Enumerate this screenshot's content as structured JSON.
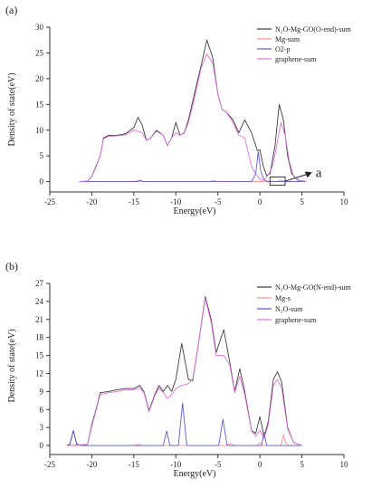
{
  "chart_data": [
    {
      "type": "line",
      "panel_label": "(a)",
      "xlabel": "Energy(eV)",
      "ylabel": "Density of state(eV)",
      "xlim": [
        -25,
        10
      ],
      "ylim": [
        -2,
        30
      ],
      "xticks": [
        -25,
        -20,
        -15,
        -10,
        -5,
        0,
        5,
        10
      ],
      "yticks": [
        0,
        5,
        10,
        15,
        20,
        25,
        30
      ],
      "legend_position": "top-right",
      "annotation": {
        "text": "a",
        "box_x": [
          1.2,
          3.0
        ],
        "box_y": [
          -0.7,
          0.9
        ],
        "arrow_to_x": 6.2,
        "arrow_to_y": 1.8
      },
      "series": [
        {
          "name": "N₂O-Mg-GO(O-end)-sum",
          "color": "#3a3a3a",
          "points": [
            [
              -21.5,
              0
            ],
            [
              -20.5,
              0.1
            ],
            [
              -20,
              1
            ],
            [
              -19.5,
              3
            ],
            [
              -19,
              5
            ],
            [
              -18.6,
              8.5
            ],
            [
              -18,
              9
            ],
            [
              -17,
              9
            ],
            [
              -16,
              9.3
            ],
            [
              -15,
              10.5
            ],
            [
              -14.5,
              12.5
            ],
            [
              -14,
              11
            ],
            [
              -13.5,
              8
            ],
            [
              -13,
              8.5
            ],
            [
              -12.3,
              10
            ],
            [
              -11.5,
              9
            ],
            [
              -11,
              7
            ],
            [
              -10.5,
              8.5
            ],
            [
              -10,
              11.5
            ],
            [
              -9.5,
              9
            ],
            [
              -9,
              9.5
            ],
            [
              -8.5,
              12
            ],
            [
              -7.8,
              17
            ],
            [
              -7,
              22.5
            ],
            [
              -6.3,
              27.5
            ],
            [
              -5.6,
              24
            ],
            [
              -5,
              17
            ],
            [
              -4.5,
              14
            ],
            [
              -4,
              13.5
            ],
            [
              -3.2,
              12
            ],
            [
              -2.5,
              9.5
            ],
            [
              -1.8,
              12
            ],
            [
              -1,
              9.5
            ],
            [
              -0.3,
              6
            ],
            [
              0,
              6.2
            ],
            [
              0.4,
              3
            ],
            [
              0.8,
              1.2
            ],
            [
              1.2,
              1.5
            ],
            [
              1.8,
              7
            ],
            [
              2.3,
              15
            ],
            [
              2.8,
              12
            ],
            [
              3.3,
              5
            ],
            [
              3.8,
              1.5
            ],
            [
              4.5,
              0.3
            ],
            [
              5.5,
              0
            ]
          ]
        },
        {
          "name": "Mg-sum",
          "color": "#ff8c8c",
          "points": [
            [
              -21.5,
              0
            ],
            [
              -15,
              0
            ],
            [
              -14.5,
              0.2
            ],
            [
              -14,
              0
            ],
            [
              -6,
              0
            ],
            [
              -5.5,
              0.2
            ],
            [
              -5,
              0
            ],
            [
              2,
              0
            ],
            [
              2.5,
              0.3
            ],
            [
              3,
              0
            ],
            [
              5.5,
              0
            ]
          ]
        },
        {
          "name": "O2-p",
          "color": "#5b5bd6",
          "points": [
            [
              -21.5,
              0
            ],
            [
              -14.5,
              0
            ],
            [
              -14.2,
              0.3
            ],
            [
              -13.9,
              0
            ],
            [
              -1,
              0
            ],
            [
              -0.5,
              1.5
            ],
            [
              -0.2,
              5.8
            ],
            [
              0.1,
              2
            ],
            [
              0.5,
              0.3
            ],
            [
              1,
              0
            ],
            [
              5.5,
              0
            ]
          ]
        },
        {
          "name": "graphene-sum",
          "color": "#e06ee0",
          "points": [
            [
              -21.5,
              0
            ],
            [
              -20.5,
              0.1
            ],
            [
              -20,
              1
            ],
            [
              -19.5,
              2.8
            ],
            [
              -19,
              5
            ],
            [
              -18.6,
              8.3
            ],
            [
              -18,
              8.8
            ],
            [
              -17,
              8.9
            ],
            [
              -16,
              9.1
            ],
            [
              -15,
              10
            ],
            [
              -14.5,
              9.8
            ],
            [
              -14,
              9.5
            ],
            [
              -13.5,
              8
            ],
            [
              -13,
              8.5
            ],
            [
              -12.3,
              9.8
            ],
            [
              -11.5,
              9
            ],
            [
              -11,
              7
            ],
            [
              -10.5,
              8.5
            ],
            [
              -10,
              9.5
            ],
            [
              -9.5,
              9
            ],
            [
              -9,
              9.4
            ],
            [
              -8.5,
              11.5
            ],
            [
              -7.8,
              16
            ],
            [
              -7,
              22
            ],
            [
              -6.3,
              24.8
            ],
            [
              -5.6,
              23
            ],
            [
              -5,
              17
            ],
            [
              -4.5,
              14
            ],
            [
              -4,
              13.5
            ],
            [
              -3.2,
              11.5
            ],
            [
              -2.5,
              9
            ],
            [
              -1.8,
              8.5
            ],
            [
              -1,
              3
            ],
            [
              -0.5,
              1.5
            ],
            [
              0,
              0.5
            ],
            [
              0.5,
              0.3
            ],
            [
              1,
              1.3
            ],
            [
              1.5,
              3
            ],
            [
              2,
              7
            ],
            [
              2.5,
              11.5
            ],
            [
              3,
              9
            ],
            [
              3.5,
              4
            ],
            [
              4,
              1
            ],
            [
              4.7,
              0.2
            ],
            [
              5.5,
              0
            ]
          ]
        }
      ]
    },
    {
      "type": "line",
      "panel_label": "(b)",
      "xlabel": "Energy(eV)",
      "ylabel": "Density of state(eV)",
      "xlim": [
        -25,
        10
      ],
      "ylim": [
        -1.5,
        27
      ],
      "xticks": [
        -25,
        -20,
        -15,
        -10,
        -5,
        0,
        5,
        10
      ],
      "yticks": [
        0,
        3,
        6,
        9,
        12,
        15,
        18,
        21,
        24,
        27
      ],
      "legend_position": "top-right",
      "series": [
        {
          "name": "N₂O-Mg-GO(N-end)-sum",
          "color": "#3a3a3a",
          "points": [
            [
              -23,
              0
            ],
            [
              -22.6,
              0.2
            ],
            [
              -22.2,
              2.5
            ],
            [
              -21.8,
              0.2
            ],
            [
              -21.3,
              0
            ],
            [
              -20.5,
              0.2
            ],
            [
              -20,
              3.5
            ],
            [
              -19.5,
              6
            ],
            [
              -19,
              8.8
            ],
            [
              -18,
              9
            ],
            [
              -17,
              9.3
            ],
            [
              -16,
              9.5
            ],
            [
              -15,
              9.5
            ],
            [
              -14.3,
              10
            ],
            [
              -13.8,
              9
            ],
            [
              -13.2,
              5.8
            ],
            [
              -12.5,
              8.5
            ],
            [
              -12,
              10
            ],
            [
              -11.5,
              9
            ],
            [
              -11,
              10
            ],
            [
              -10.5,
              9
            ],
            [
              -10,
              11
            ],
            [
              -9.3,
              17
            ],
            [
              -8.5,
              11
            ],
            [
              -8,
              10.8
            ],
            [
              -7.2,
              18
            ],
            [
              -6.5,
              24.8
            ],
            [
              -5.8,
              21
            ],
            [
              -5.2,
              15.5
            ],
            [
              -4.3,
              19.3
            ],
            [
              -3.6,
              14
            ],
            [
              -3,
              9
            ],
            [
              -2.4,
              12.8
            ],
            [
              -1.8,
              9
            ],
            [
              -1,
              2.5
            ],
            [
              -0.5,
              2
            ],
            [
              0,
              4.8
            ],
            [
              0.5,
              1.5
            ],
            [
              1,
              4
            ],
            [
              1.6,
              11
            ],
            [
              2.1,
              12.3
            ],
            [
              2.6,
              10.5
            ],
            [
              3.3,
              3
            ],
            [
              4,
              0.5
            ],
            [
              5,
              0
            ]
          ]
        },
        {
          "name": "Mg-s",
          "color": "#ff8c8c",
          "points": [
            [
              -23,
              0
            ],
            [
              -15,
              0
            ],
            [
              -14.5,
              0.2
            ],
            [
              -14,
              0
            ],
            [
              -4,
              0
            ],
            [
              -3.5,
              0.3
            ],
            [
              -3,
              0
            ],
            [
              -0.3,
              0
            ],
            [
              0,
              0.5
            ],
            [
              0.3,
              0
            ],
            [
              2.5,
              0
            ],
            [
              2.8,
              1.8
            ],
            [
              3.1,
              0.3
            ],
            [
              3.5,
              0
            ],
            [
              5,
              0
            ]
          ]
        },
        {
          "name": "N₂O-sum",
          "color": "#5b5bd6",
          "points": [
            [
              -23,
              0
            ],
            [
              -22.6,
              0.3
            ],
            [
              -22.2,
              2.5
            ],
            [
              -21.8,
              0.3
            ],
            [
              -21.3,
              0
            ],
            [
              -11.5,
              0
            ],
            [
              -11.1,
              2.4
            ],
            [
              -10.7,
              0
            ],
            [
              -9.7,
              0
            ],
            [
              -9.2,
              7.1
            ],
            [
              -8.7,
              0
            ],
            [
              -4.9,
              0
            ],
            [
              -4.4,
              4.4
            ],
            [
              -3.9,
              0
            ],
            [
              0.2,
              0
            ],
            [
              0.5,
              2.2
            ],
            [
              0.8,
              0
            ],
            [
              5,
              0
            ]
          ]
        },
        {
          "name": "graphene-sum",
          "color": "#e06ee0",
          "points": [
            [
              -23,
              0
            ],
            [
              -20.5,
              0.2
            ],
            [
              -20,
              3.2
            ],
            [
              -19.5,
              5.8
            ],
            [
              -19,
              8.5
            ],
            [
              -18,
              8.8
            ],
            [
              -17,
              9
            ],
            [
              -16,
              9.3
            ],
            [
              -15,
              9.3
            ],
            [
              -14.3,
              9.6
            ],
            [
              -13.8,
              8.8
            ],
            [
              -13.2,
              5.6
            ],
            [
              -12.5,
              8.3
            ],
            [
              -12,
              9.6
            ],
            [
              -11.5,
              8.8
            ],
            [
              -11,
              7.8
            ],
            [
              -10.5,
              8.5
            ],
            [
              -10,
              9.5
            ],
            [
              -9.3,
              10
            ],
            [
              -8.5,
              10.3
            ],
            [
              -8,
              11
            ],
            [
              -7.2,
              18
            ],
            [
              -6.5,
              24.5
            ],
            [
              -5.8,
              20.5
            ],
            [
              -5.2,
              15
            ],
            [
              -4.3,
              15
            ],
            [
              -3.6,
              13.5
            ],
            [
              -3,
              8.8
            ],
            [
              -2.4,
              11.5
            ],
            [
              -1.8,
              8.5
            ],
            [
              -1,
              2.4
            ],
            [
              -0.5,
              1.5
            ],
            [
              0,
              2.5
            ],
            [
              0.5,
              1.2
            ],
            [
              1,
              3.5
            ],
            [
              1.6,
              10
            ],
            [
              2.1,
              11
            ],
            [
              2.6,
              9.5
            ],
            [
              3.3,
              2.8
            ],
            [
              4,
              0.5
            ],
            [
              5,
              0
            ]
          ]
        }
      ]
    }
  ]
}
